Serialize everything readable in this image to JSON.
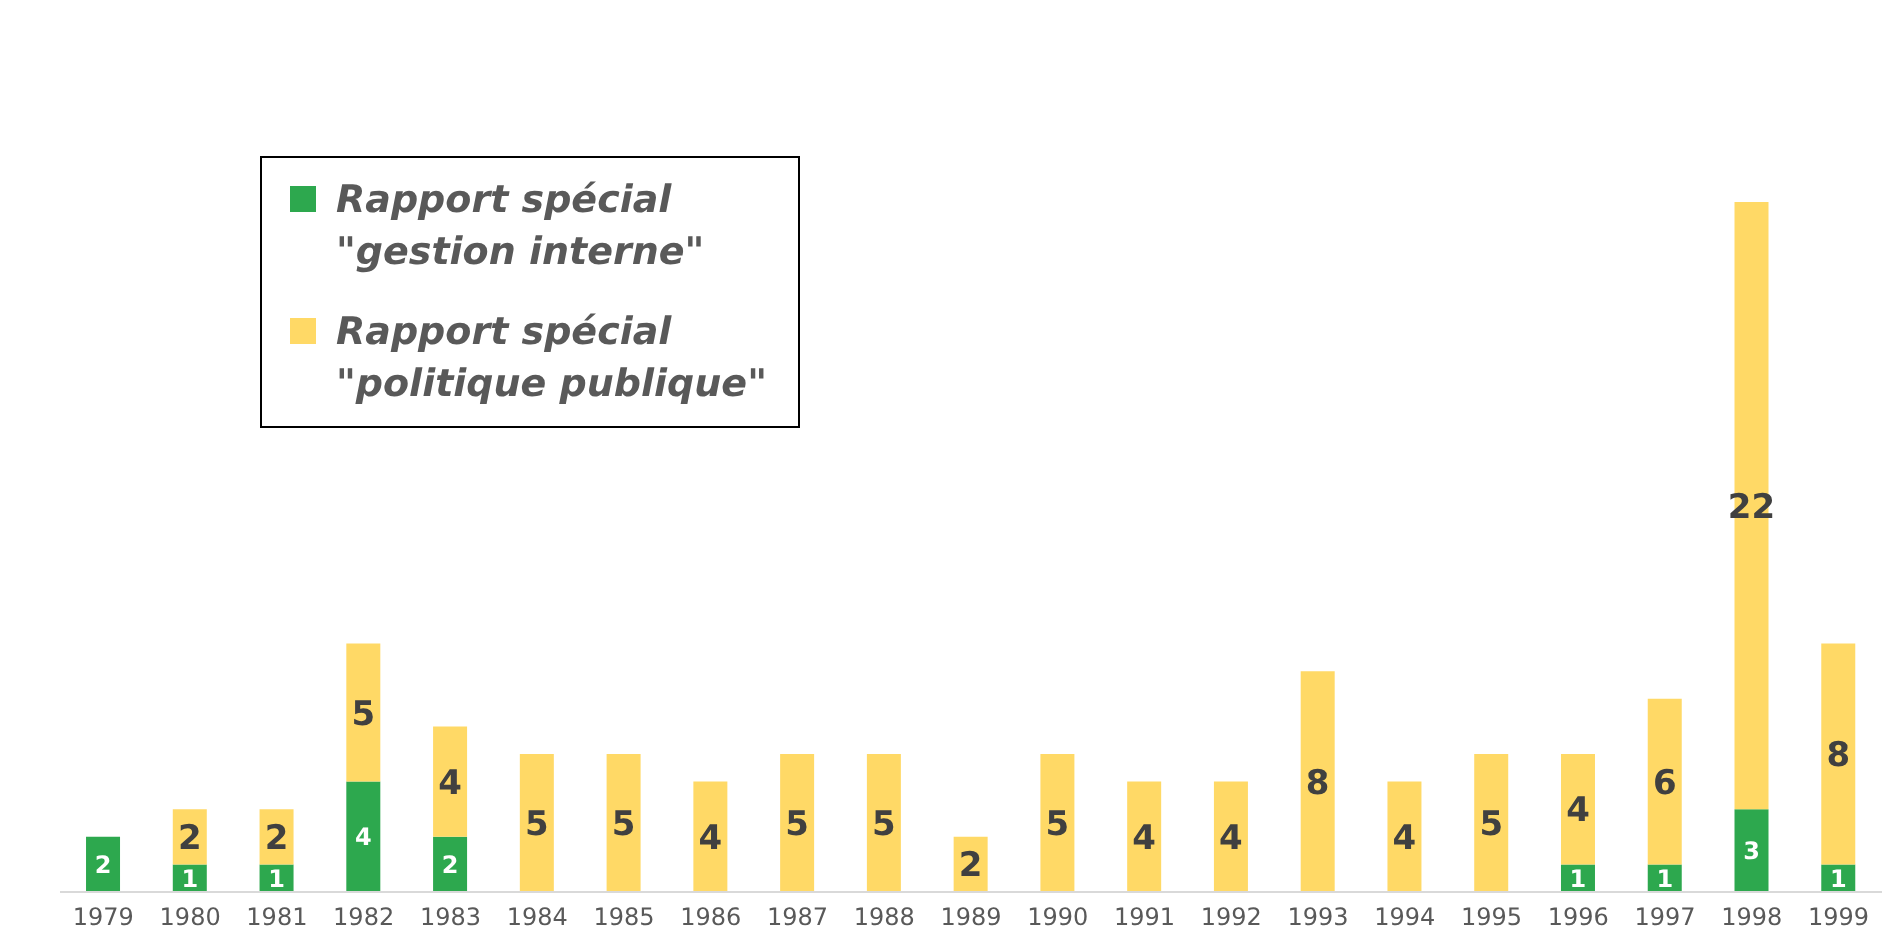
{
  "chart_data": {
    "type": "bar",
    "stacked": true,
    "categories": [
      "1979",
      "1980",
      "1981",
      "1982",
      "1983",
      "1984",
      "1985",
      "1986",
      "1987",
      "1988",
      "1989",
      "1990",
      "1991",
      "1992",
      "1993",
      "1994",
      "1995",
      "1996",
      "1997",
      "1998",
      "1999"
    ],
    "series": [
      {
        "name": "Rapport spécial \"gestion interne\"",
        "color": "#2da84e",
        "values": [
          2,
          1,
          1,
          4,
          2,
          null,
          null,
          null,
          null,
          null,
          null,
          null,
          null,
          null,
          null,
          null,
          null,
          1,
          1,
          3,
          1
        ]
      },
      {
        "name": "Rapport spécial \"politique publique\"",
        "color": "#ffd966",
        "values": [
          null,
          2,
          2,
          5,
          4,
          5,
          5,
          4,
          5,
          5,
          2,
          5,
          4,
          4,
          8,
          4,
          5,
          4,
          6,
          22,
          8
        ]
      }
    ],
    "tick_labels": "x",
    "legend": "top left",
    "data_labels": true
  }
}
